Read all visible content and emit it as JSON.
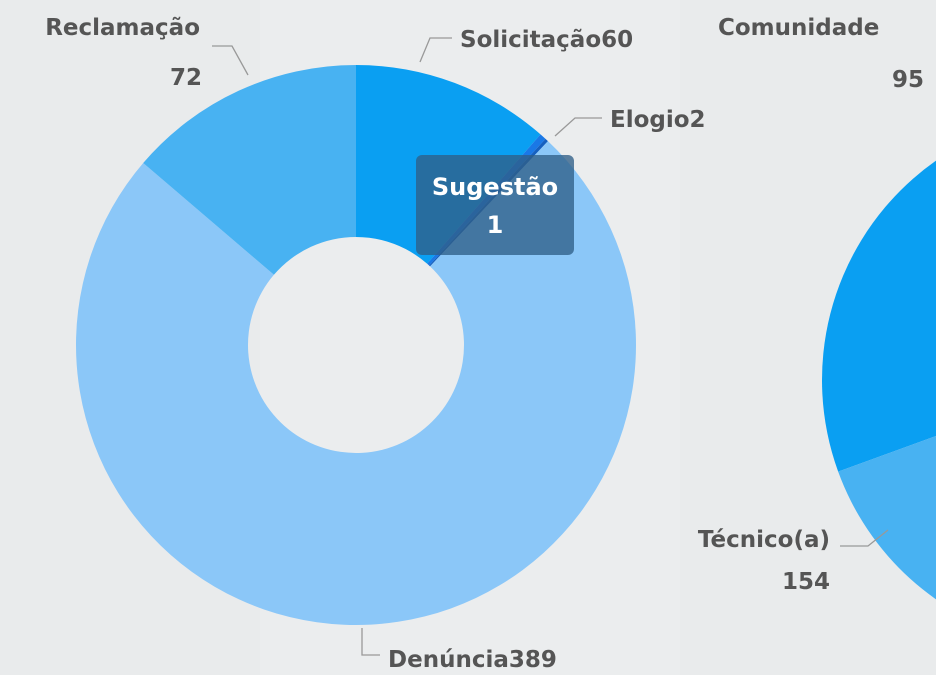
{
  "chart_data": [
    {
      "type": "donut",
      "categories": [
        "Solicitação",
        "Elogio",
        "Sugestão",
        "Denúncia",
        "Reclamação"
      ],
      "values": [
        60,
        2,
        1,
        389,
        72
      ],
      "colors": [
        "#0a9ff2",
        "#1a78e6",
        "#1560c0",
        "#8bc7f8",
        "#48b2f2"
      ]
    },
    {
      "type": "pie",
      "categories": [
        "Comunidade",
        "Técnico(a)"
      ],
      "values": [
        95,
        154
      ],
      "colors": [
        "#0a9ff2",
        "#48b2f2"
      ]
    }
  ]
}
